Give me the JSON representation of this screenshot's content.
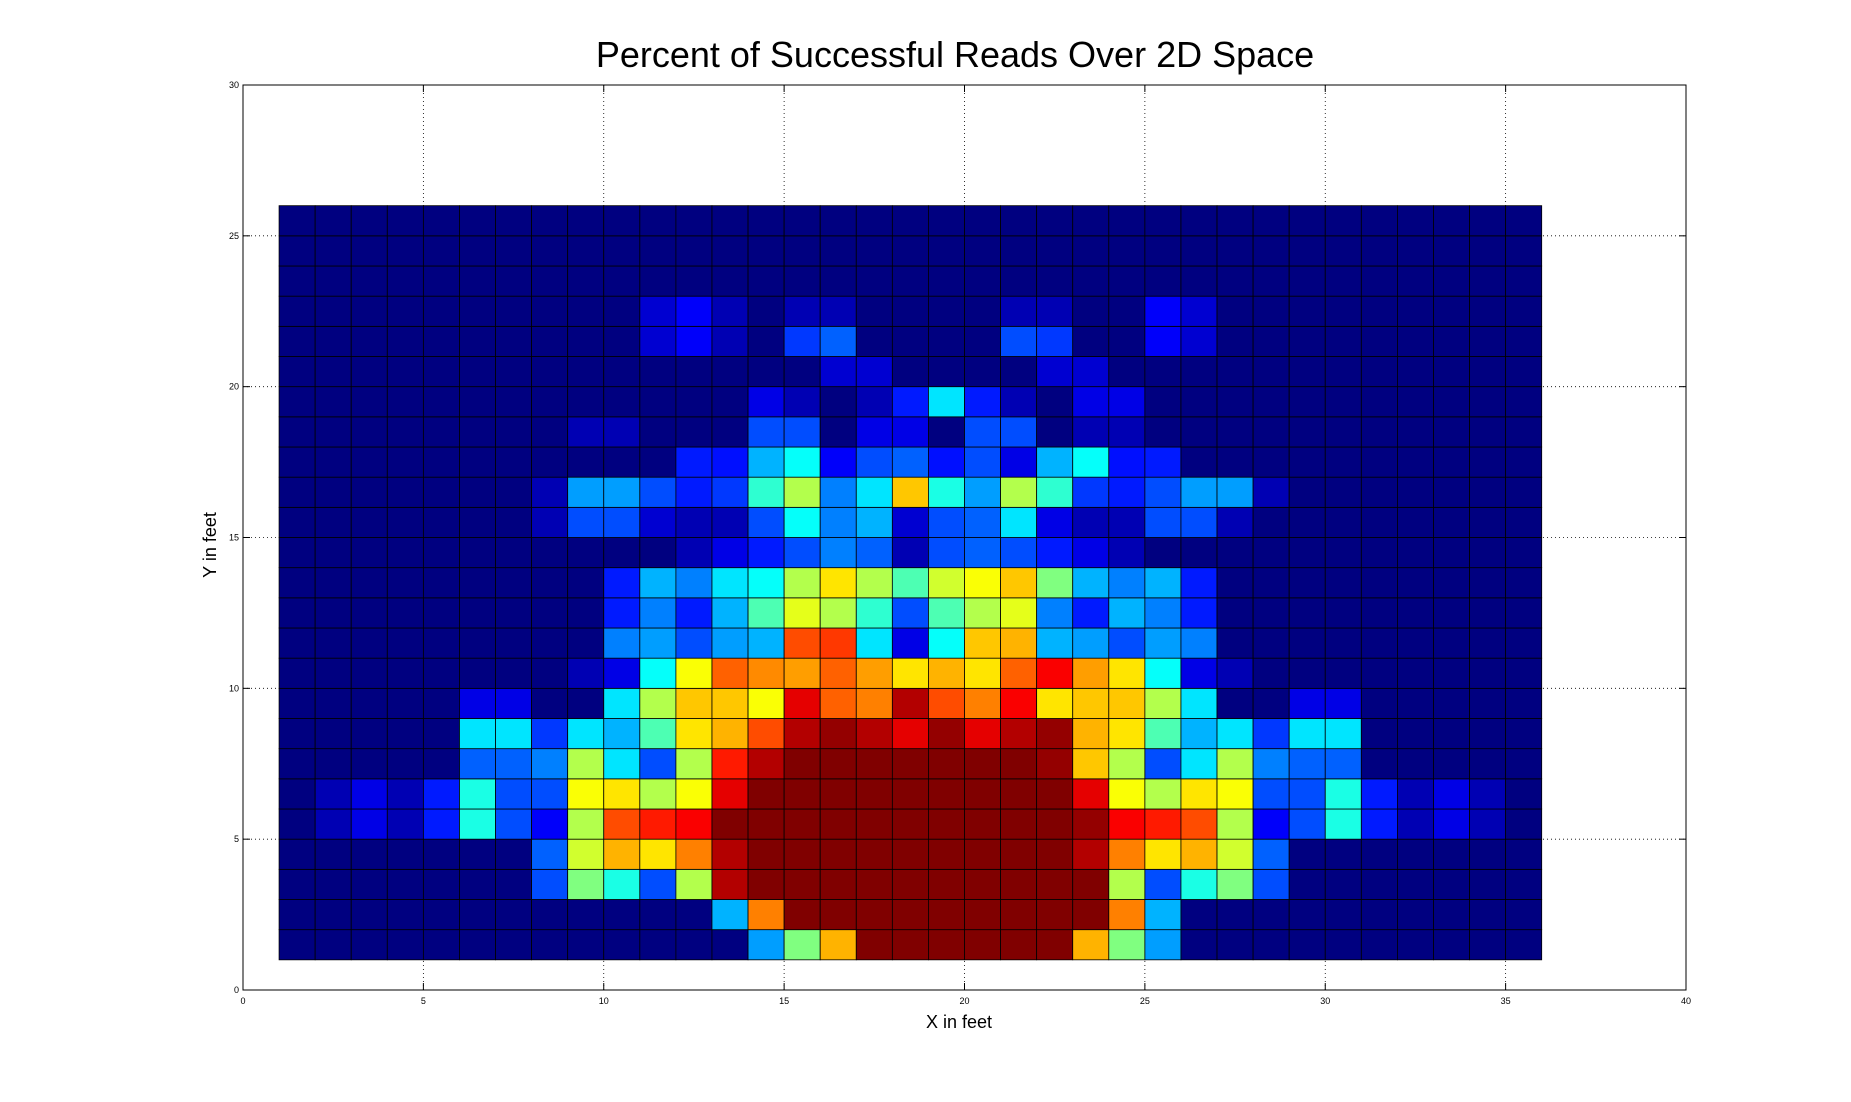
{
  "chart_data": {
    "type": "heatmap",
    "title": "Percent of Successful Reads Over 2D Space",
    "xlabel": "X in feet",
    "ylabel": "Y in feet",
    "xlim": [
      0,
      40
    ],
    "ylim": [
      0,
      30
    ],
    "xticks": [
      0,
      5,
      10,
      15,
      20,
      25,
      30,
      35,
      40
    ],
    "yticks": [
      0,
      5,
      10,
      15,
      20,
      25,
      30
    ],
    "grid": true,
    "colormap": "jet",
    "x_edges_start": 1,
    "cell_width": 1,
    "y_edges_start": 1,
    "cell_height": 1,
    "value_range": [
      0,
      100
    ],
    "rows_bottom_to_top": [
      [
        0,
        0,
        0,
        0,
        0,
        0,
        0,
        0,
        0,
        0,
        0,
        0,
        0,
        28,
        50,
        70,
        100,
        100,
        100,
        100,
        100,
        100,
        70,
        50,
        28,
        0,
        0,
        0,
        0,
        0,
        0,
        0,
        0,
        0,
        0
      ],
      [
        0,
        0,
        0,
        0,
        0,
        0,
        0,
        0,
        0,
        0,
        0,
        0,
        30,
        75,
        100,
        100,
        100,
        100,
        100,
        100,
        100,
        100,
        100,
        75,
        30,
        0,
        0,
        0,
        0,
        0,
        0,
        0,
        0,
        0,
        0
      ],
      [
        0,
        0,
        0,
        0,
        0,
        0,
        0,
        20,
        50,
        40,
        20,
        55,
        95,
        100,
        100,
        100,
        100,
        100,
        100,
        100,
        100,
        100,
        100,
        55,
        20,
        40,
        50,
        20,
        0,
        0,
        0,
        0,
        0,
        0,
        0
      ],
      [
        0,
        0,
        0,
        0,
        0,
        0,
        0,
        22,
        58,
        70,
        65,
        75,
        95,
        100,
        100,
        100,
        100,
        100,
        100,
        100,
        100,
        100,
        95,
        75,
        65,
        70,
        58,
        22,
        0,
        0,
        0,
        0,
        0,
        0,
        0
      ],
      [
        0,
        5,
        10,
        5,
        15,
        40,
        20,
        12,
        55,
        80,
        85,
        88,
        100,
        100,
        100,
        100,
        100,
        100,
        100,
        100,
        100,
        100,
        98,
        88,
        85,
        80,
        55,
        12,
        20,
        40,
        15,
        5,
        10,
        5,
        0
      ],
      [
        0,
        5,
        10,
        5,
        15,
        40,
        20,
        20,
        62,
        65,
        55,
        62,
        90,
        100,
        100,
        100,
        100,
        100,
        100,
        100,
        100,
        100,
        90,
        62,
        55,
        65,
        62,
        20,
        20,
        40,
        15,
        5,
        10,
        5,
        0
      ],
      [
        0,
        0,
        0,
        0,
        0,
        22,
        22,
        25,
        55,
        35,
        20,
        55,
        85,
        95,
        100,
        100,
        100,
        100,
        100,
        100,
        100,
        98,
        68,
        55,
        20,
        35,
        55,
        25,
        22,
        22,
        0,
        0,
        0,
        0,
        0
      ],
      [
        0,
        0,
        0,
        0,
        0,
        35,
        35,
        18,
        35,
        30,
        45,
        65,
        70,
        80,
        95,
        98,
        95,
        90,
        98,
        90,
        95,
        98,
        70,
        65,
        45,
        30,
        35,
        18,
        35,
        35,
        0,
        0,
        0,
        0,
        0
      ],
      [
        0,
        0,
        0,
        0,
        0,
        10,
        10,
        0,
        0,
        35,
        55,
        68,
        68,
        62,
        90,
        78,
        75,
        95,
        80,
        75,
        88,
        65,
        68,
        68,
        55,
        35,
        0,
        0,
        10,
        10,
        0,
        0,
        0,
        0,
        0
      ],
      [
        0,
        0,
        0,
        0,
        0,
        0,
        0,
        0,
        5,
        10,
        38,
        62,
        78,
        74,
        72,
        78,
        72,
        65,
        70,
        65,
        78,
        88,
        72,
        65,
        38,
        10,
        5,
        0,
        0,
        0,
        0,
        0,
        0,
        0,
        0
      ],
      [
        0,
        0,
        0,
        0,
        0,
        0,
        0,
        0,
        0,
        25,
        28,
        20,
        28,
        30,
        80,
        82,
        35,
        10,
        38,
        68,
        70,
        30,
        28,
        20,
        28,
        25,
        0,
        0,
        0,
        0,
        0,
        0,
        0,
        0,
        0
      ],
      [
        0,
        0,
        0,
        0,
        0,
        0,
        0,
        0,
        0,
        15,
        25,
        15,
        30,
        45,
        60,
        55,
        42,
        20,
        45,
        55,
        60,
        25,
        15,
        30,
        25,
        15,
        0,
        0,
        0,
        0,
        0,
        0,
        0,
        0,
        0
      ],
      [
        0,
        0,
        0,
        0,
        0,
        0,
        0,
        0,
        0,
        15,
        30,
        25,
        35,
        38,
        55,
        65,
        55,
        45,
        58,
        62,
        68,
        50,
        30,
        25,
        30,
        15,
        0,
        0,
        0,
        0,
        0,
        0,
        0,
        0,
        0
      ],
      [
        0,
        0,
        0,
        0,
        0,
        0,
        0,
        0,
        0,
        0,
        0,
        5,
        10,
        15,
        20,
        25,
        22,
        5,
        20,
        22,
        20,
        15,
        10,
        5,
        0,
        0,
        0,
        0,
        0,
        0,
        0,
        0,
        0,
        0,
        0
      ],
      [
        0,
        0,
        0,
        0,
        0,
        0,
        0,
        5,
        20,
        20,
        8,
        5,
        5,
        20,
        38,
        25,
        30,
        8,
        20,
        22,
        35,
        10,
        5,
        5,
        20,
        20,
        5,
        0,
        0,
        0,
        0,
        0,
        0,
        0,
        0
      ],
      [
        0,
        0,
        0,
        0,
        0,
        0,
        0,
        5,
        28,
        28,
        20,
        15,
        18,
        42,
        55,
        25,
        35,
        68,
        40,
        28,
        55,
        42,
        18,
        15,
        20,
        28,
        28,
        5,
        0,
        0,
        0,
        0,
        0,
        0,
        0
      ],
      [
        0,
        0,
        0,
        0,
        0,
        0,
        0,
        0,
        0,
        0,
        0,
        15,
        14,
        30,
        38,
        12,
        20,
        22,
        14,
        20,
        10,
        30,
        38,
        14,
        15,
        0,
        0,
        0,
        0,
        0,
        0,
        0,
        0,
        0,
        0
      ],
      [
        0,
        0,
        0,
        0,
        0,
        0,
        0,
        0,
        5,
        5,
        0,
        0,
        0,
        20,
        20,
        0,
        10,
        10,
        0,
        20,
        20,
        0,
        5,
        5,
        0,
        0,
        0,
        0,
        0,
        0,
        0,
        0,
        0,
        0,
        0
      ],
      [
        0,
        0,
        0,
        0,
        0,
        0,
        0,
        0,
        0,
        0,
        0,
        0,
        0,
        10,
        5,
        0,
        5,
        15,
        35,
        15,
        5,
        0,
        10,
        10,
        0,
        0,
        0,
        0,
        0,
        0,
        0,
        0,
        0,
        0,
        0
      ],
      [
        0,
        0,
        0,
        0,
        0,
        0,
        0,
        0,
        0,
        0,
        0,
        0,
        0,
        0,
        0,
        8,
        8,
        0,
        0,
        0,
        0,
        8,
        8,
        0,
        0,
        0,
        0,
        0,
        0,
        0,
        0,
        0,
        0,
        0,
        0
      ],
      [
        0,
        0,
        0,
        0,
        0,
        0,
        0,
        0,
        0,
        0,
        8,
        12,
        5,
        0,
        18,
        22,
        0,
        0,
        0,
        0,
        20,
        18,
        0,
        0,
        12,
        8,
        0,
        0,
        0,
        0,
        0,
        0,
        0,
        0,
        0
      ],
      [
        0,
        0,
        0,
        0,
        0,
        0,
        0,
        0,
        0,
        0,
        8,
        12,
        5,
        0,
        5,
        5,
        0,
        0,
        0,
        0,
        5,
        5,
        0,
        0,
        12,
        8,
        0,
        0,
        0,
        0,
        0,
        0,
        0,
        0,
        0
      ],
      [
        0,
        0,
        0,
        0,
        0,
        0,
        0,
        0,
        0,
        0,
        0,
        0,
        0,
        0,
        0,
        0,
        0,
        0,
        0,
        0,
        0,
        0,
        0,
        0,
        0,
        0,
        0,
        0,
        0,
        0,
        0,
        0,
        0,
        0,
        0
      ],
      [
        0,
        0,
        0,
        0,
        0,
        0,
        0,
        0,
        0,
        0,
        0,
        0,
        0,
        0,
        0,
        0,
        0,
        0,
        0,
        0,
        0,
        0,
        0,
        0,
        0,
        0,
        0,
        0,
        0,
        0,
        0,
        0,
        0,
        0,
        0
      ],
      [
        0,
        0,
        0,
        0,
        0,
        0,
        0,
        0,
        0,
        0,
        0,
        0,
        0,
        0,
        0,
        0,
        0,
        0,
        0,
        0,
        0,
        0,
        0,
        0,
        0,
        0,
        0,
        0,
        0,
        0,
        0,
        0,
        0,
        0,
        0
      ]
    ]
  }
}
